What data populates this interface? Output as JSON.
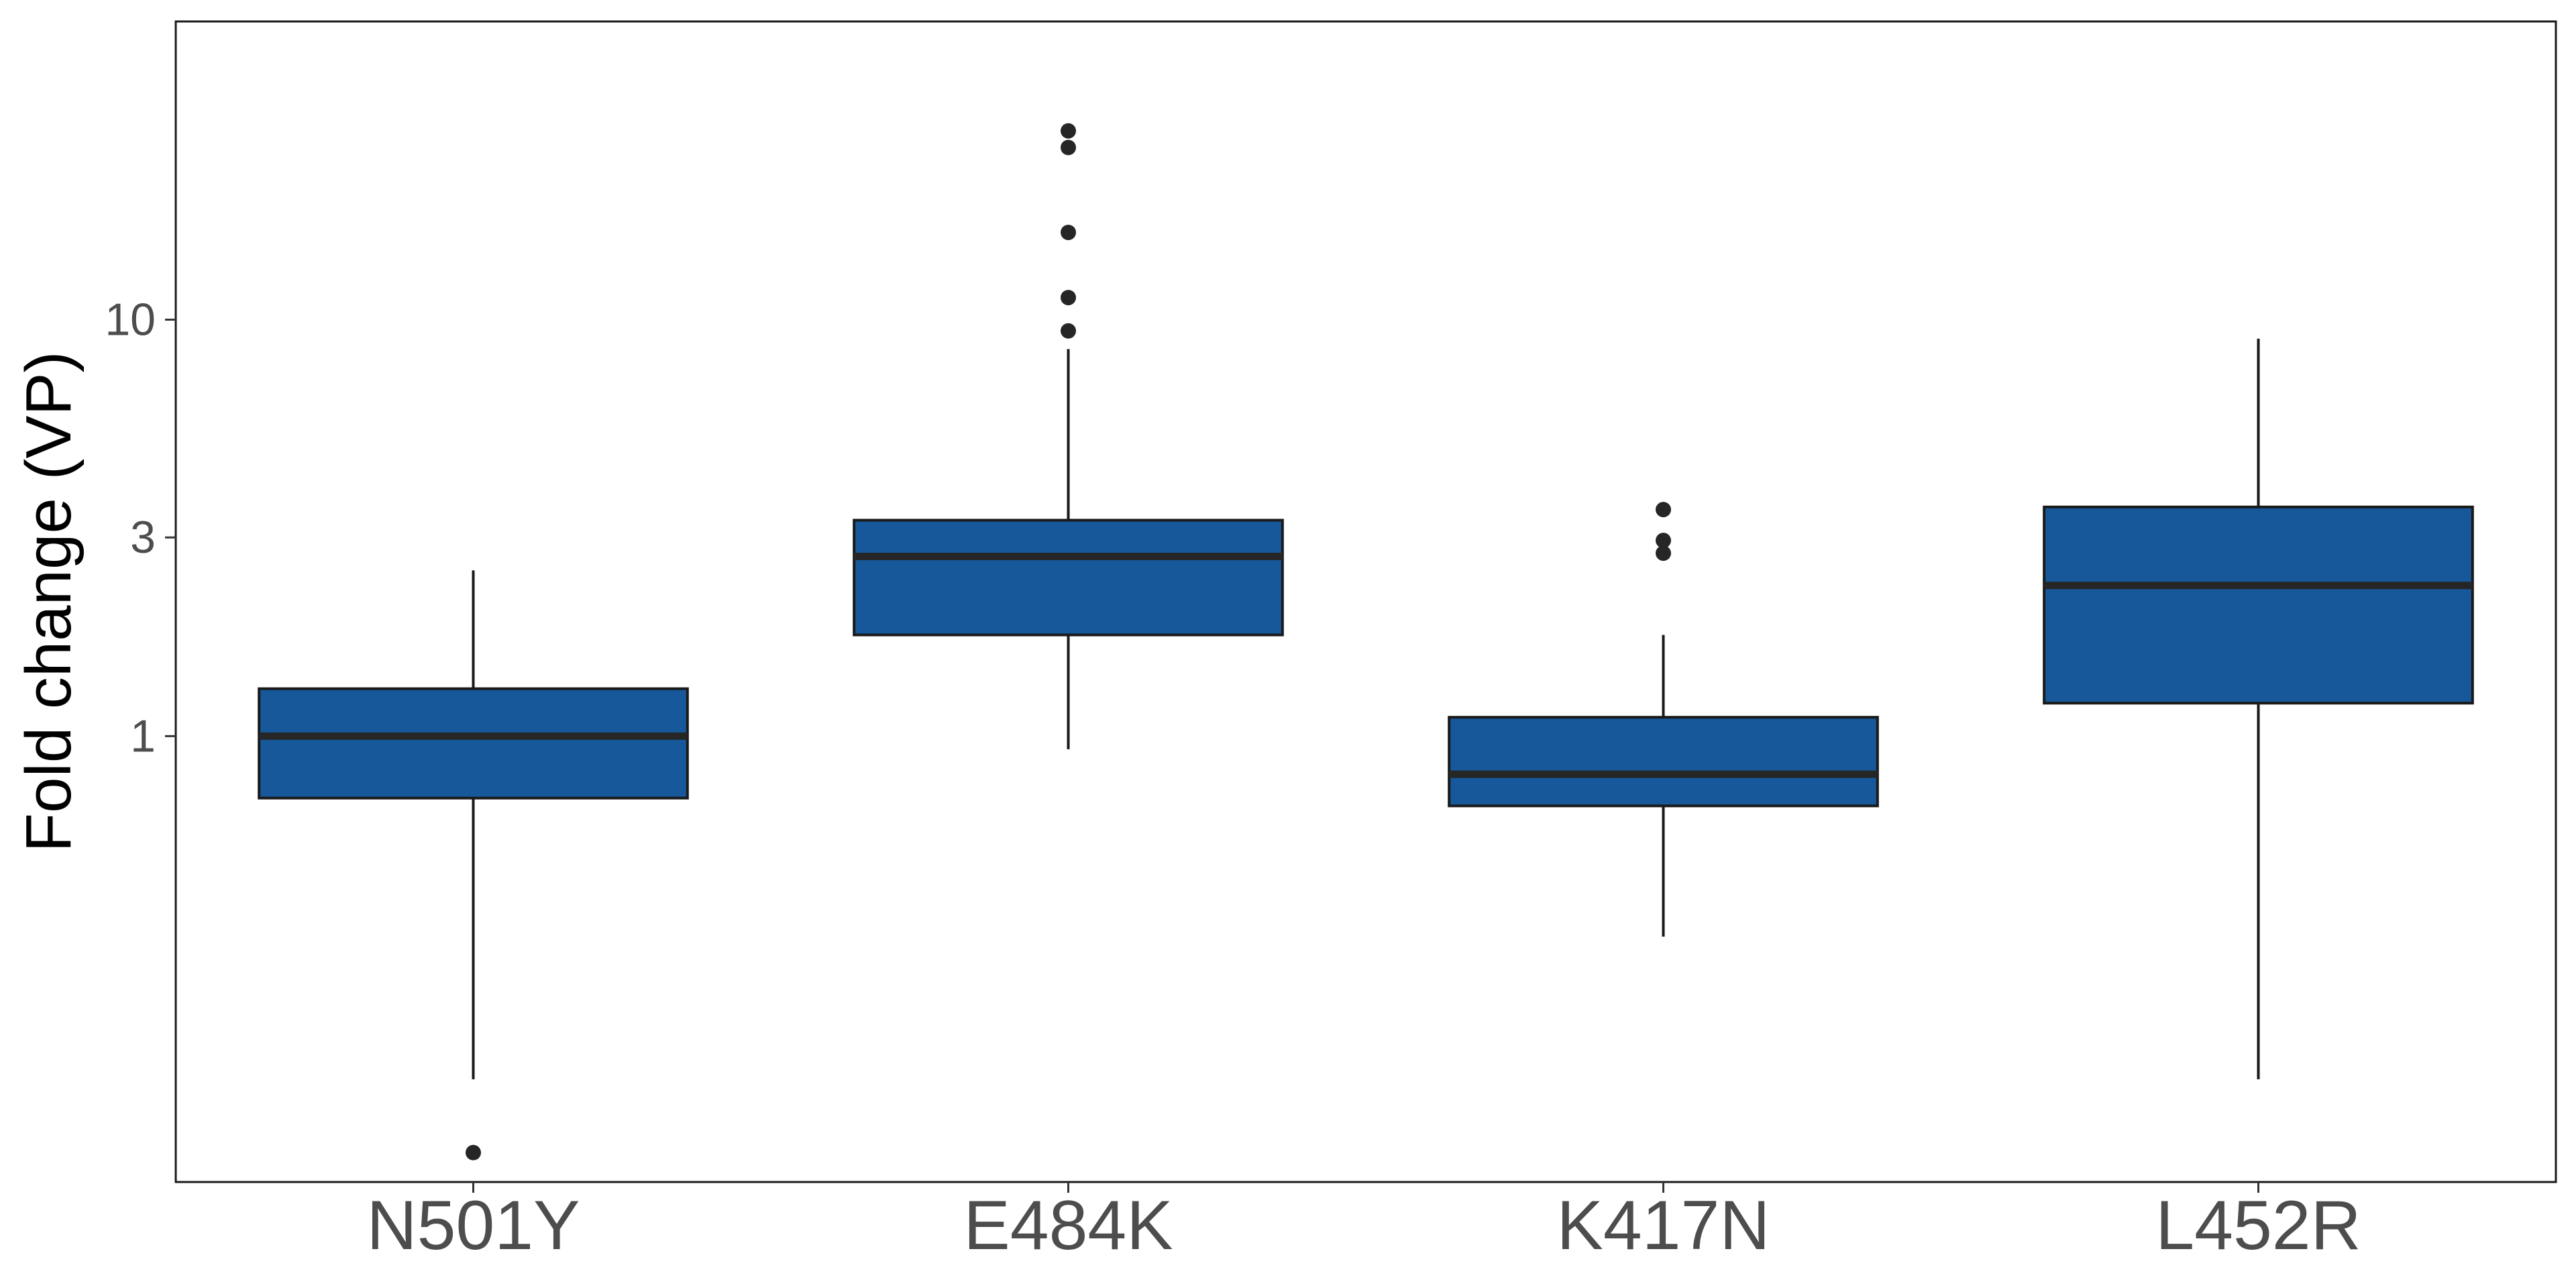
{
  "chart_data": {
    "type": "boxplot",
    "title": "",
    "xlabel": "",
    "ylabel": "Fold change (VP)",
    "y_scale": "log10",
    "ylim": [
      0.085,
      52
    ],
    "y_ticks": [
      {
        "value": 1,
        "label": "1"
      },
      {
        "value": 3,
        "label": "3"
      },
      {
        "value": 10,
        "label": "10"
      }
    ],
    "categories": [
      "N501Y",
      "E484K",
      "K417N",
      "L452R"
    ],
    "fill_color": "#17589A",
    "edge_color": "#1a1a1a",
    "boxes": [
      {
        "category": "N501Y",
        "whisker_low": 0.15,
        "q1": 0.71,
        "median": 1.0,
        "q3": 1.3,
        "whisker_high": 2.5,
        "outliers": [
          0.1
        ]
      },
      {
        "category": "E484K",
        "whisker_low": 0.93,
        "q1": 1.75,
        "median": 2.7,
        "q3": 3.3,
        "whisker_high": 8.5,
        "outliers": [
          9.4,
          11.3,
          16.2,
          25.9,
          28.4
        ]
      },
      {
        "category": "K417N",
        "whisker_low": 0.33,
        "q1": 0.68,
        "median": 0.81,
        "q3": 1.11,
        "whisker_high": 1.75,
        "outliers": [
          2.75,
          2.95,
          3.5
        ]
      },
      {
        "category": "L452R",
        "whisker_low": 0.15,
        "q1": 1.2,
        "median": 2.3,
        "q3": 3.55,
        "whisker_high": 9.0,
        "outliers": []
      }
    ]
  }
}
